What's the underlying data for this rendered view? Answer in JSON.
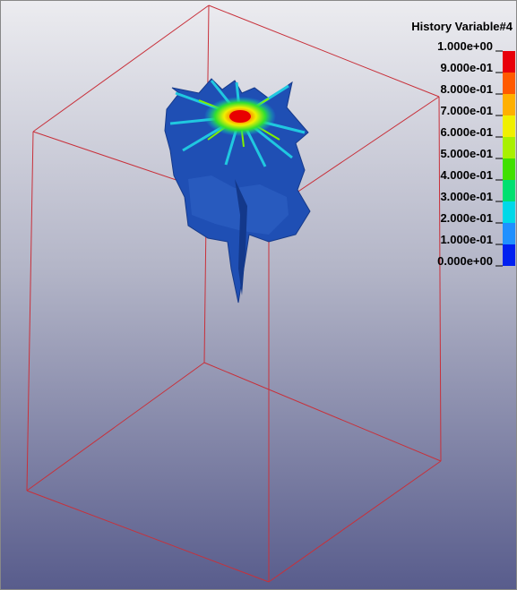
{
  "legend": {
    "title": "History Variable#4",
    "labels": [
      "1.000e+00",
      "9.000e-01",
      "8.000e-01",
      "7.000e-01",
      "6.000e-01",
      "5.000e-01",
      "4.000e-01",
      "3.000e-01",
      "2.000e-01",
      "1.000e-01",
      "0.000e+00"
    ],
    "colors": [
      "#e8000a",
      "#ff5a00",
      "#ffb000",
      "#f0f000",
      "#a8f000",
      "#40e000",
      "#00e070",
      "#00d8e8",
      "#2090ff",
      "#0020f0"
    ]
  }
}
